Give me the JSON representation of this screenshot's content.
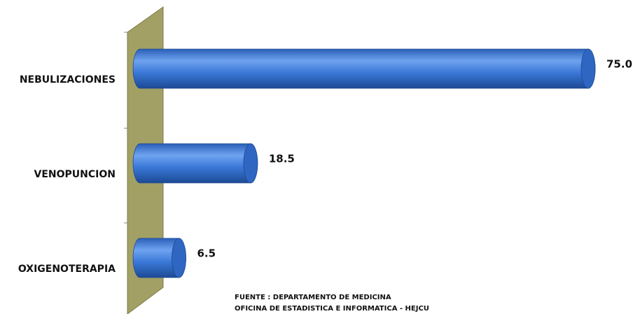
{
  "chart_data": {
    "type": "bar",
    "orientation": "horizontal",
    "categories": [
      "NEBULIZACIONES",
      "VENOPUNCION",
      "OXIGENOTERAPIA"
    ],
    "values": [
      75.0,
      18.5,
      6.5
    ],
    "value_labels": [
      "75.0",
      "18.5",
      "6.5"
    ],
    "color": "#3a78d8",
    "annotations": [
      "FUENTE : DEPARTAMENTO DE MEDICINA",
      "OFICINA DE ESTADISTICA E INFORMATICA - HEJCU"
    ]
  }
}
